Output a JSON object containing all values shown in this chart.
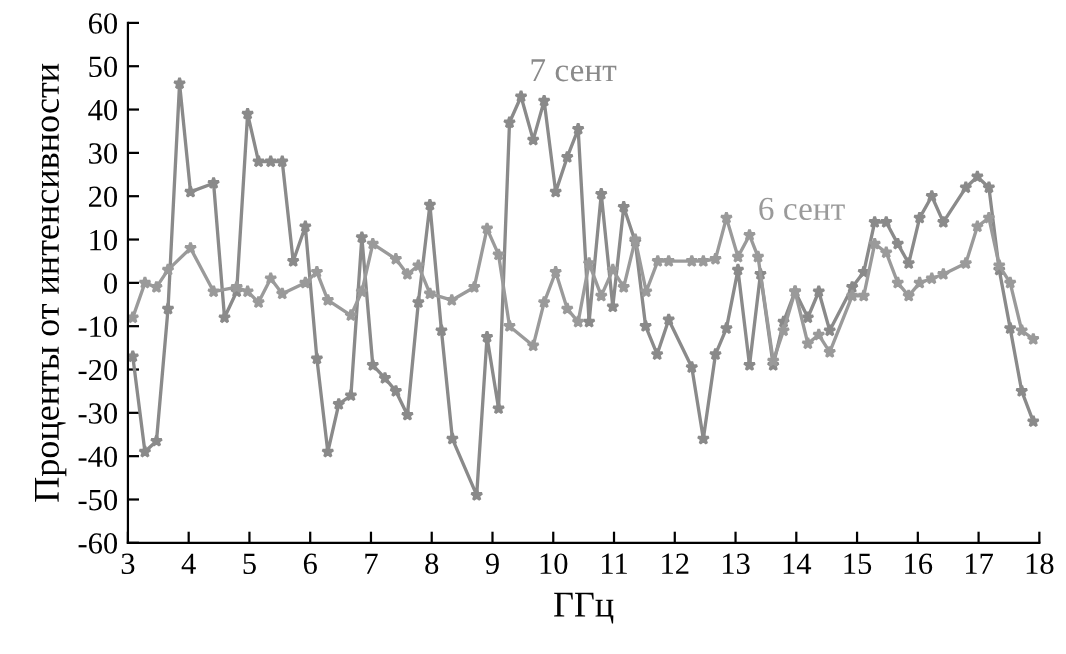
{
  "chart_data": {
    "type": "line",
    "xlabel": "ГГц",
    "ylabel": "Проценты от интенсивности",
    "marker": "star",
    "line_style": "solid",
    "grid": false,
    "xlim": [
      3,
      18
    ],
    "xticks": [
      3,
      4,
      5,
      6,
      7,
      8,
      9,
      10,
      11,
      12,
      13,
      14,
      15,
      16,
      17,
      18
    ],
    "ylim": [
      -60,
      60
    ],
    "yticks": [
      -60,
      -50,
      -40,
      -30,
      -20,
      -10,
      0,
      10,
      20,
      30,
      40,
      50,
      60
    ],
    "series": [
      {
        "name": "7 сент",
        "color": "#8a8a8a",
        "x": [
          3.08,
          3.28,
          3.47,
          3.66,
          3.85,
          4.03,
          4.41,
          4.59,
          4.79,
          4.97,
          5.15,
          5.35,
          5.54,
          5.72,
          5.92,
          6.11,
          6.29,
          6.47,
          6.67,
          6.85,
          7.03,
          7.23,
          7.41,
          7.6,
          7.78,
          7.97,
          8.16,
          8.34,
          8.74,
          8.91,
          9.1,
          9.28,
          9.47,
          9.67,
          9.85,
          10.04,
          10.23,
          10.41,
          10.59,
          10.79,
          10.98,
          11.16,
          11.35,
          11.52,
          11.71,
          11.9,
          12.28,
          12.47,
          12.67,
          12.85,
          13.04,
          13.23,
          13.41,
          13.62,
          13.79,
          13.98,
          14.19,
          14.37,
          14.55,
          14.92,
          15.11,
          15.29,
          15.48,
          15.67,
          15.85,
          16.03,
          16.23,
          16.42,
          16.79,
          16.98,
          17.17,
          17.34,
          17.52,
          17.71,
          17.9
        ],
        "values": [
          -17,
          -39,
          -36.5,
          -6,
          46,
          21,
          23,
          -8,
          -2,
          39,
          28,
          28,
          28,
          5,
          13,
          -17.5,
          -39,
          -28,
          -26,
          10.5,
          -19,
          -22,
          -25,
          -30.5,
          -4.5,
          18,
          -11,
          -36,
          -49,
          -12.5,
          -29,
          37,
          43,
          33,
          42,
          21,
          29,
          35.5,
          -9,
          20.5,
          -5.5,
          17.5,
          9.5,
          -10,
          -16.5,
          -8.5,
          -19.5,
          -36,
          -16.5,
          -10.5,
          3,
          -19,
          2,
          -19,
          -9,
          -2,
          -8,
          -2,
          -11,
          -1,
          2.5,
          14,
          14,
          9,
          4.5,
          15,
          20,
          14,
          22,
          24.5,
          22,
          3,
          -10.5,
          -25,
          -32
        ]
      },
      {
        "name": "6 сент",
        "color": "#9a9a9a",
        "x": [
          3.08,
          3.28,
          3.47,
          3.66,
          4.03,
          4.41,
          4.79,
          4.97,
          5.15,
          5.35,
          5.54,
          5.92,
          6.11,
          6.29,
          6.67,
          6.85,
          7.03,
          7.41,
          7.6,
          7.78,
          7.97,
          8.33,
          8.7,
          8.91,
          9.1,
          9.28,
          9.67,
          9.85,
          10.04,
          10.23,
          10.41,
          10.59,
          10.79,
          10.98,
          11.16,
          11.35,
          11.53,
          11.72,
          11.9,
          12.28,
          12.47,
          12.67,
          12.85,
          13.04,
          13.23,
          13.37,
          13.62,
          13.79,
          13.98,
          14.19,
          14.37,
          14.55,
          14.92,
          15.11,
          15.29,
          15.48,
          15.67,
          15.85,
          16.03,
          16.23,
          16.42,
          16.79,
          16.98,
          17.17,
          17.34,
          17.52,
          17.71,
          17.9
        ],
        "values": [
          -8,
          0,
          -1,
          3,
          8,
          -2,
          -1,
          -2,
          -4.5,
          1,
          -2.5,
          0,
          2.5,
          -4,
          -7.5,
          -2,
          9,
          5.5,
          2,
          4,
          -2.5,
          -4,
          -1,
          12.5,
          6.5,
          -10,
          -14.5,
          -4.5,
          2.5,
          -6,
          -9,
          4.5,
          -3,
          3,
          -1,
          10,
          -2,
          5,
          5,
          5,
          5,
          5.5,
          15,
          6,
          11,
          6,
          -18,
          -11,
          -2,
          -14,
          -12,
          -16,
          -3,
          -3,
          9,
          7,
          0,
          -3,
          0,
          1,
          2,
          4.5,
          13,
          15,
          4,
          0,
          -11,
          -13
        ]
      }
    ]
  }
}
